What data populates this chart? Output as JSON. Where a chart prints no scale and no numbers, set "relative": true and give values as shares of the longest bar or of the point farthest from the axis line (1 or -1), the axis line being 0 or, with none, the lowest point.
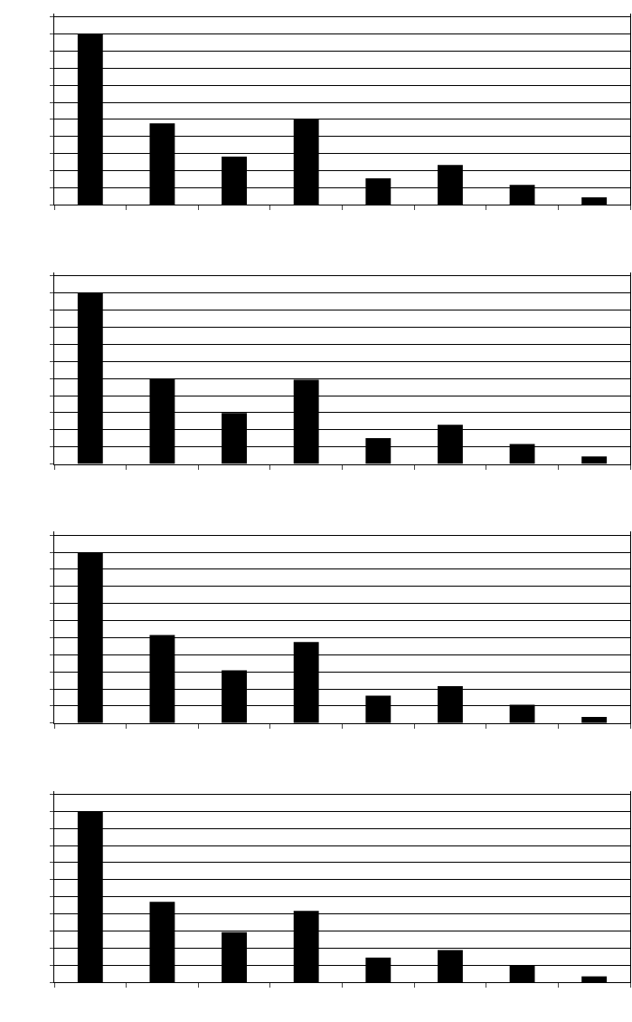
{
  "chart_data": [
    {
      "type": "bar",
      "relative": true,
      "categories": [
        null,
        null,
        null,
        null,
        null,
        null,
        null,
        null
      ],
      "values": [
        1,
        0.478,
        0.283,
        0.5,
        0.156,
        0.233,
        0.117,
        0.044
      ],
      "color": "#000000",
      "grid": "y"
    },
    {
      "type": "bar",
      "relative": true,
      "categories": [
        null,
        null,
        null,
        null,
        null,
        null,
        null,
        null
      ],
      "values": [
        1,
        0.498,
        0.298,
        0.493,
        0.151,
        0.229,
        0.117,
        0.044
      ],
      "color": "#000000",
      "grid": "y"
    },
    {
      "type": "bar",
      "relative": true,
      "categories": [
        null,
        null,
        null,
        null,
        null,
        null,
        null,
        null
      ],
      "values": [
        1,
        0.515,
        0.309,
        0.474,
        0.16,
        0.216,
        0.108,
        0.036
      ],
      "color": "#000000",
      "grid": "y"
    },
    {
      "type": "bar",
      "relative": true,
      "categories": [
        null,
        null,
        null,
        null,
        null,
        null,
        null,
        null
      ],
      "values": [
        1,
        0.471,
        0.293,
        0.418,
        0.144,
        0.188,
        0.096,
        0.034
      ],
      "color": "#000000",
      "grid": "y"
    }
  ]
}
